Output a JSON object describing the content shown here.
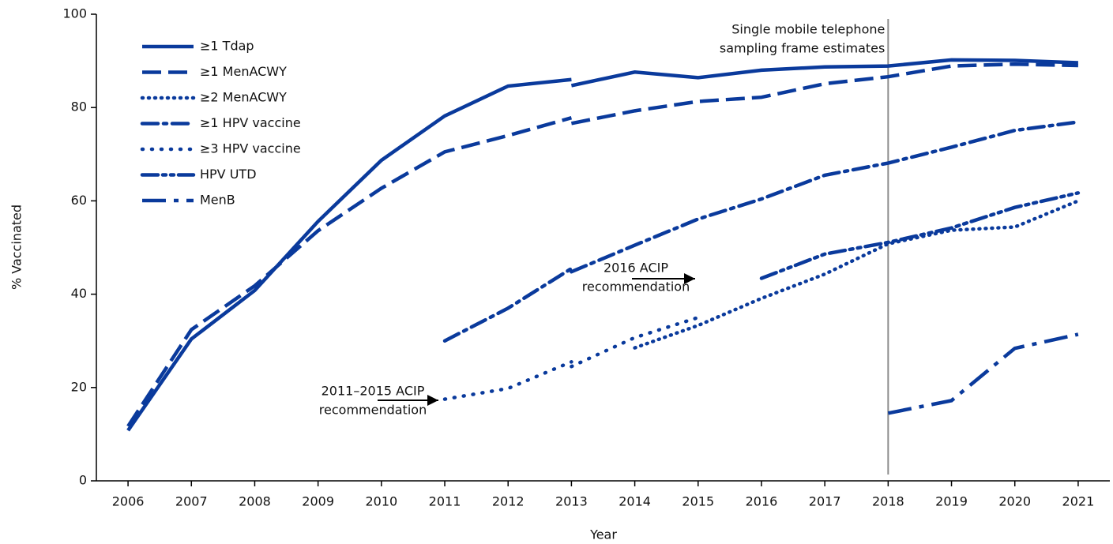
{
  "chart_data": {
    "type": "line",
    "xlabel": "Year",
    "ylabel": "% Vaccinated",
    "x": [
      2006,
      2007,
      2008,
      2009,
      2010,
      2011,
      2012,
      2013,
      2013,
      2013,
      2014,
      2015,
      2016,
      2017,
      2018,
      2019,
      2020,
      2021
    ],
    "series": [
      {
        "name": "≥1 Tdap",
        "color": "#0a3a9c",
        "dash": "solid",
        "values": [
          10.8,
          30.4,
          40.8,
          55.6,
          68.7,
          78.2,
          84.6,
          86.0,
          null,
          84.7,
          87.6,
          86.4,
          88.0,
          88.7,
          88.9,
          90.2,
          90.1,
          89.6
        ]
      },
      {
        "name": "≥1 MenACWY",
        "color": "#0a3a9c",
        "dash": "dash",
        "values": [
          11.7,
          32.4,
          41.8,
          53.6,
          62.7,
          70.5,
          74.0,
          77.8,
          null,
          76.6,
          79.3,
          81.3,
          82.2,
          85.1,
          86.6,
          88.9,
          89.3,
          89.0
        ]
      },
      {
        "name": "≥2 MenACWY",
        "color": "#0a3a9c",
        "dash": "dot",
        "values": [
          null,
          null,
          null,
          null,
          null,
          null,
          null,
          null,
          null,
          null,
          28.5,
          33.3,
          39.1,
          44.3,
          50.8,
          53.7,
          54.4,
          60.0
        ]
      },
      {
        "name": "≥1 HPV vaccine",
        "color": "#0a3a9c",
        "dash": "dashdot",
        "values": [
          null,
          null,
          null,
          null,
          null,
          30.0,
          37.0,
          45.5,
          null,
          44.8,
          50.5,
          56.1,
          60.4,
          65.5,
          68.1,
          71.5,
          75.1,
          76.9
        ]
      },
      {
        "name": "≥3 HPV vaccine",
        "color": "#0a3a9c",
        "dash": "sparsedot",
        "values": [
          null,
          null,
          null,
          null,
          null,
          17.5,
          19.8,
          25.5,
          null,
          24.5,
          30.7,
          35.0,
          null,
          null,
          null,
          null,
          null,
          null
        ]
      },
      {
        "name": "HPV UTD",
        "color": "#0a3a9c",
        "dash": "dashdotdot",
        "values": [
          null,
          null,
          null,
          null,
          null,
          null,
          null,
          null,
          null,
          null,
          null,
          null,
          43.4,
          48.6,
          51.1,
          54.2,
          58.6,
          61.7
        ]
      },
      {
        "name": "MenB",
        "color": "#0a3a9c",
        "dash": "longdash",
        "values": [
          null,
          null,
          null,
          null,
          null,
          null,
          null,
          null,
          null,
          null,
          null,
          null,
          null,
          null,
          14.5,
          17.2,
          28.4,
          31.4
        ]
      }
    ],
    "xlim": [
      2005.5,
      2021.5
    ],
    "xticks": [
      2006,
      2007,
      2008,
      2009,
      2010,
      2011,
      2012,
      2013,
      2014,
      2015,
      2016,
      2017,
      2018,
      2019,
      2020,
      2021
    ],
    "ylim": [
      0,
      100
    ],
    "yticks": [
      0,
      20,
      40,
      60,
      80,
      100
    ],
    "grid": false,
    "legend": "upper left",
    "vline": {
      "x": 2018,
      "color": "#8c8c8c",
      "label": [
        "Single mobile telephone",
        "sampling frame estimates"
      ]
    },
    "annotations": [
      {
        "text": [
          "2016 ACIP",
          "recommendation"
        ]
      },
      {
        "text": [
          "2011–2015 ACIP",
          "recommendation"
        ]
      }
    ]
  }
}
